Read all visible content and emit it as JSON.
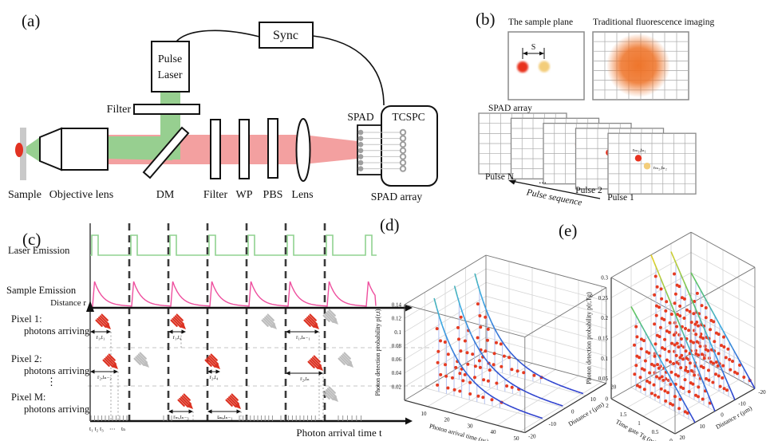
{
  "figure": {
    "panel_labels": {
      "a": "(a)",
      "b": "(b)",
      "c": "(c)",
      "d": "(d)",
      "e": "(e)"
    }
  },
  "panel_a": {
    "sync": "Sync",
    "pulse_laser_line1": "Pulse",
    "pulse_laser_line2": "Laser",
    "filter_top": "Filter",
    "sample": "Sample",
    "objective_lens": "Objective lens",
    "dm": "DM",
    "filter": "Filter",
    "wp": "WP",
    "pbs": "PBS",
    "lens": "Lens",
    "spad": "SPAD",
    "tcspc": "TCSPC",
    "spad_array": "SPAD array"
  },
  "panel_b": {
    "sample_plane_title": "The sample plane",
    "traditional_title": "Traditional fluorescence imaging",
    "separation_label": "S",
    "spad_array_title": "SPAD array",
    "pulse_n": "Pulse N",
    "ellipsis": "...",
    "pulse_2": "Pulse 2",
    "pulse_1": "Pulse 1",
    "pulse_sequence": "Pulse sequence",
    "dot1_label": "rₘ₁,tₙ₁",
    "dot2_label": "rₘ₂,tₙ₂"
  },
  "panel_c": {
    "laser_emission": "Laser Emission",
    "sample_emission": "Sample Emission",
    "distance_axis": "Distance r",
    "pixel1": "Pixel 1:",
    "pixel1_sub": "photons arriving",
    "pixel2": "Pixel 2:",
    "pixel2_sub": "photons arriving",
    "vdots": "⋮",
    "pixelM": "Pixel M:",
    "pixelM_sub": "photons arriving",
    "time_axis": "Photon arrival time t",
    "tick_labels": "t₁ t₂ t₃",
    "tick_dots": "⋯",
    "tick_tn": "tₙ",
    "annotations": [
      "r₁,t₁",
      "r₁,t₄",
      "r₁,tₙ₋₁",
      "r₂,tₙ₋₂",
      "r₂,t₄",
      "r₂,tₙ",
      "rₘ,tₙ₋₃",
      "rₘ,tₙ₋₁"
    ]
  },
  "chart_data": [
    {
      "id": "d",
      "type": "line",
      "plot_style": "3d-stem",
      "xlabel": "Photon arrival time (ns)",
      "x_ticks": [
        10,
        20,
        30,
        40,
        50
      ],
      "x_range": [
        0,
        52
      ],
      "ylabel": "Distance r (μm)",
      "y_ticks": [
        -20,
        -10,
        0,
        10,
        20
      ],
      "y_range": [
        -20,
        20
      ],
      "zlabel": "Photon detection probability p(r,t)",
      "z_ticks": [
        0.02,
        0.04,
        0.06,
        0.08,
        0.1,
        0.12,
        0.14
      ],
      "z_range": [
        0,
        0.14
      ],
      "grid": "on",
      "legend": "none",
      "series": [
        {
          "r": 10,
          "peak": 0.135,
          "t0": 4,
          "tau": 11
        },
        {
          "r": 0,
          "peak": 0.135,
          "t0": 4,
          "tau": 11
        },
        {
          "r": -10,
          "peak": 0.135,
          "t0": 4,
          "tau": 11
        }
      ],
      "description": "Exponential photon-detection-probability decay curves vs arrival time at three distances, with red detected-photon dots and light-blue stems under each curve"
    },
    {
      "id": "e",
      "type": "line",
      "plot_style": "3d-stem",
      "xlabel": "Time gate Tg (ns)",
      "x_ticks": [
        2,
        1.5,
        1,
        0.5,
        0
      ],
      "x_range": [
        0,
        2
      ],
      "ylabel": "Distance r (μm)",
      "y_ticks": [
        20,
        10,
        0,
        -10,
        -20
      ],
      "y_range": [
        -20,
        20
      ],
      "zlabel": "Photon detection probability p(r,Tg)",
      "z_ticks": [
        0,
        0.05,
        0.1,
        0.15,
        0.2,
        0.25,
        0.3
      ],
      "z_range": [
        0,
        0.3
      ],
      "grid": "on",
      "legend": "none",
      "series": [
        {
          "r": 10,
          "peak": 0.2
        },
        {
          "r": 0,
          "peak": 0.3
        },
        {
          "r": -10,
          "peak": 0.28
        },
        {
          "r": -20,
          "peak": 0.2
        }
      ],
      "description": "Linear gated detection probability vs time gate at four distances, colour-graded lines (yellow high to blue low) with red photon dots and light-blue stems"
    }
  ]
}
